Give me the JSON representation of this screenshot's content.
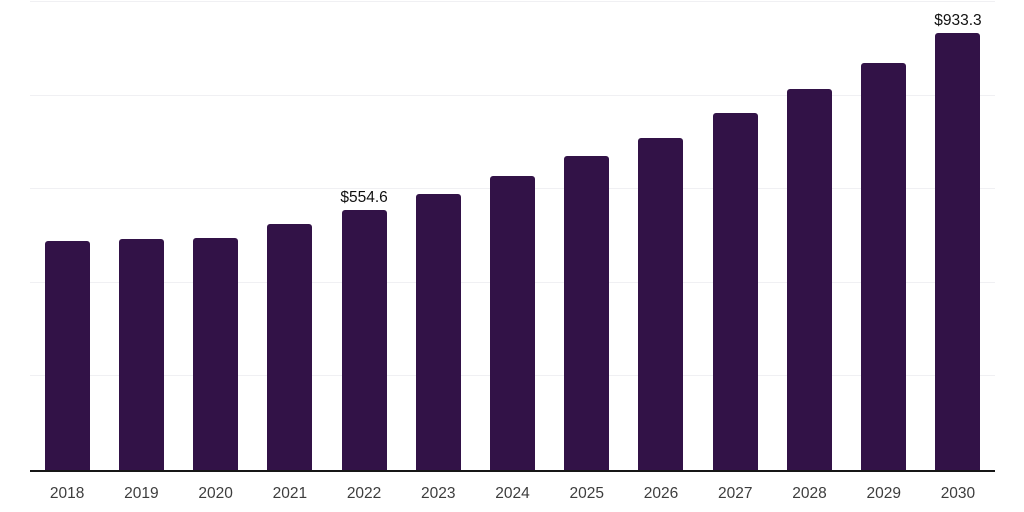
{
  "chart_data": {
    "type": "bar",
    "title": "",
    "xlabel": "",
    "ylabel": "",
    "categories": [
      "2018",
      "2019",
      "2020",
      "2021",
      "2022",
      "2023",
      "2024",
      "2025",
      "2026",
      "2027",
      "2028",
      "2029",
      "2030"
    ],
    "values": [
      489.7,
      493.9,
      496.4,
      526.2,
      554.6,
      588.9,
      628.0,
      670.0,
      710.1,
      763.5,
      813.3,
      870.3,
      933.3
    ],
    "data_labels": {
      "2022": "$554.6",
      "2030": "$933.3"
    },
    "value_unit_prefix": "$",
    "ylim": [
      0,
      1000
    ],
    "grid_step": 200,
    "grid": "horizontal",
    "legend_position": "none",
    "colors": {
      "bar": "#321247",
      "axis": "#161616",
      "grid": "#f0f0f3",
      "value_label": "#111111",
      "tick_label": "#3d3d3d",
      "background": "#ffffff"
    }
  }
}
